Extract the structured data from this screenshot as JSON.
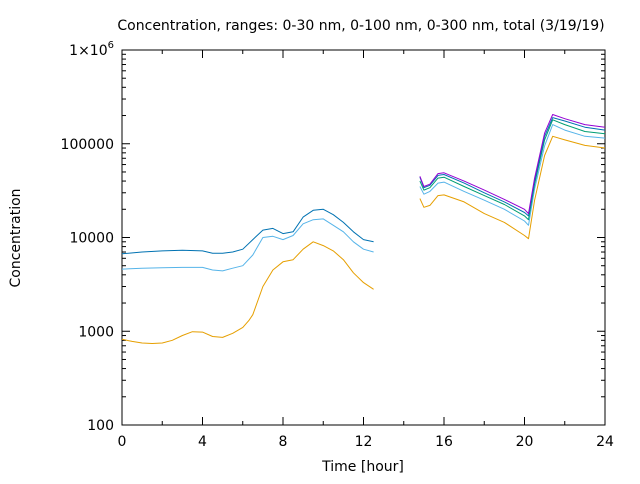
{
  "chart_data": {
    "type": "line",
    "title": "Concentration, ranges: 0-30 nm, 0-100 nm, 0-300 nm, total (3/19/19)",
    "xlabel": "Time [hour]",
    "ylabel": "Concentration",
    "xlim": [
      0,
      24
    ],
    "ylim": [
      100,
      1000000
    ],
    "yscale": "log",
    "grid": false,
    "x_ticks": [
      0,
      4,
      8,
      12,
      16,
      20,
      24
    ],
    "y_ticks": [
      {
        "value": 100,
        "label": "100"
      },
      {
        "value": 1000,
        "label": "1000"
      },
      {
        "value": 10000,
        "label": "10000"
      },
      {
        "value": 100000,
        "label": "100000"
      },
      {
        "value": 1000000,
        "label": "1×10",
        "sup": "6"
      }
    ],
    "series": [
      {
        "color": "#e69f00",
        "segments": [
          [
            [
              0,
              820
            ],
            [
              0.5,
              780
            ],
            [
              1,
              750
            ],
            [
              1.5,
              740
            ],
            [
              2,
              750
            ],
            [
              2.5,
              800
            ],
            [
              3,
              900
            ],
            [
              3.5,
              990
            ],
            [
              4,
              980
            ],
            [
              4.5,
              880
            ],
            [
              5,
              860
            ],
            [
              5.5,
              950
            ],
            [
              6,
              1100
            ],
            [
              6.3,
              1300
            ],
            [
              6.5,
              1500
            ],
            [
              7,
              3000
            ],
            [
              7.5,
              4500
            ],
            [
              8,
              5500
            ],
            [
              8.5,
              5800
            ],
            [
              9,
              7500
            ],
            [
              9.5,
              9000
            ],
            [
              10,
              8200
            ],
            [
              10.5,
              7200
            ],
            [
              11,
              5800
            ],
            [
              11.5,
              4200
            ],
            [
              12,
              3300
            ],
            [
              12.5,
              2800
            ]
          ],
          [
            [
              14.8,
              26000
            ],
            [
              15,
              21000
            ],
            [
              15.3,
              22000
            ],
            [
              15.7,
              28000
            ],
            [
              16,
              28500
            ],
            [
              17,
              24000
            ],
            [
              18,
              18000
            ],
            [
              19,
              14500
            ],
            [
              20,
              10500
            ],
            [
              20.2,
              9700
            ],
            [
              20.5,
              25000
            ],
            [
              21,
              75000
            ],
            [
              21.4,
              120000
            ],
            [
              22,
              110000
            ],
            [
              23,
              96000
            ],
            [
              24,
              90000
            ]
          ]
        ]
      },
      {
        "color": "#56b4e9",
        "segments": [
          [
            [
              0,
              4600
            ],
            [
              1,
              4700
            ],
            [
              2,
              4750
            ],
            [
              3,
              4800
            ],
            [
              4,
              4800
            ],
            [
              4.5,
              4500
            ],
            [
              5,
              4400
            ],
            [
              5.5,
              4700
            ],
            [
              6,
              5000
            ],
            [
              6.5,
              6500
            ],
            [
              7,
              10000
            ],
            [
              7.5,
              10300
            ],
            [
              8,
              9500
            ],
            [
              8.5,
              10500
            ],
            [
              9,
              14000
            ],
            [
              9.5,
              15500
            ],
            [
              10,
              15800
            ],
            [
              10.5,
              13500
            ],
            [
              11,
              11500
            ],
            [
              11.5,
              9000
            ],
            [
              12,
              7500
            ],
            [
              12.5,
              7000
            ]
          ],
          [
            [
              14.8,
              35000
            ],
            [
              15,
              29000
            ],
            [
              15.3,
              31000
            ],
            [
              15.7,
              38000
            ],
            [
              16,
              39000
            ],
            [
              17,
              31000
            ],
            [
              18,
              25000
            ],
            [
              19,
              20000
            ],
            [
              20,
              15000
            ],
            [
              20.2,
              13500
            ],
            [
              20.5,
              33000
            ],
            [
              21,
              95000
            ],
            [
              21.4,
              160000
            ],
            [
              22,
              140000
            ],
            [
              23,
              120000
            ],
            [
              24,
              115000
            ]
          ]
        ]
      },
      {
        "color": "#009e73",
        "segments": [
          [
            [
              14.8,
              40000
            ],
            [
              15,
              32000
            ],
            [
              15.3,
              34000
            ],
            [
              15.7,
              43000
            ],
            [
              16,
              44000
            ],
            [
              17,
              35000
            ],
            [
              18,
              28000
            ],
            [
              19,
              22500
            ],
            [
              20,
              17000
            ],
            [
              20.2,
              15500
            ],
            [
              20.5,
              37000
            ],
            [
              21,
              110000
            ],
            [
              21.4,
              180000
            ],
            [
              22,
              160000
            ],
            [
              23,
              135000
            ],
            [
              24,
              128000
            ]
          ]
        ]
      },
      {
        "color": "#0072b2",
        "segments": [
          [
            [
              0,
              6700
            ],
            [
              1,
              7000
            ],
            [
              2,
              7200
            ],
            [
              3,
              7300
            ],
            [
              4,
              7200
            ],
            [
              4.5,
              6800
            ],
            [
              5,
              6800
            ],
            [
              5.5,
              7000
            ],
            [
              6,
              7500
            ],
            [
              6.5,
              9500
            ],
            [
              7,
              12000
            ],
            [
              7.5,
              12500
            ],
            [
              8,
              11000
            ],
            [
              8.5,
              11500
            ],
            [
              9,
              16500
            ],
            [
              9.5,
              19500
            ],
            [
              10,
              20000
            ],
            [
              10.5,
              17500
            ],
            [
              11,
              14500
            ],
            [
              11.5,
              11500
            ],
            [
              12,
              9500
            ],
            [
              12.5,
              9000
            ]
          ],
          [
            [
              14.8,
              44000
            ],
            [
              15,
              34000
            ],
            [
              15.3,
              36000
            ],
            [
              15.7,
              46000
            ],
            [
              16,
              47000
            ],
            [
              17,
              38000
            ],
            [
              18,
              30000
            ],
            [
              19,
              24000
            ],
            [
              20,
              18500
            ],
            [
              20.2,
              17000
            ],
            [
              20.5,
              40000
            ],
            [
              21,
              120000
            ],
            [
              21.4,
              190000
            ],
            [
              22,
              175000
            ],
            [
              23,
              150000
            ],
            [
              24,
              140000
            ]
          ]
        ]
      },
      {
        "color": "#9400d3",
        "segments": [
          [
            [
              14.8,
              45000
            ],
            [
              15,
              35000
            ],
            [
              15.3,
              37000
            ],
            [
              15.7,
              48000
            ],
            [
              16,
              49000
            ],
            [
              17,
              40000
            ],
            [
              18,
              32000
            ],
            [
              19,
              25500
            ],
            [
              20,
              20000
            ],
            [
              20.2,
              18000
            ],
            [
              20.5,
              43000
            ],
            [
              21,
              130000
            ],
            [
              21.4,
              205000
            ],
            [
              22,
              185000
            ],
            [
              23,
              160000
            ],
            [
              24,
              150000
            ]
          ]
        ]
      }
    ]
  }
}
